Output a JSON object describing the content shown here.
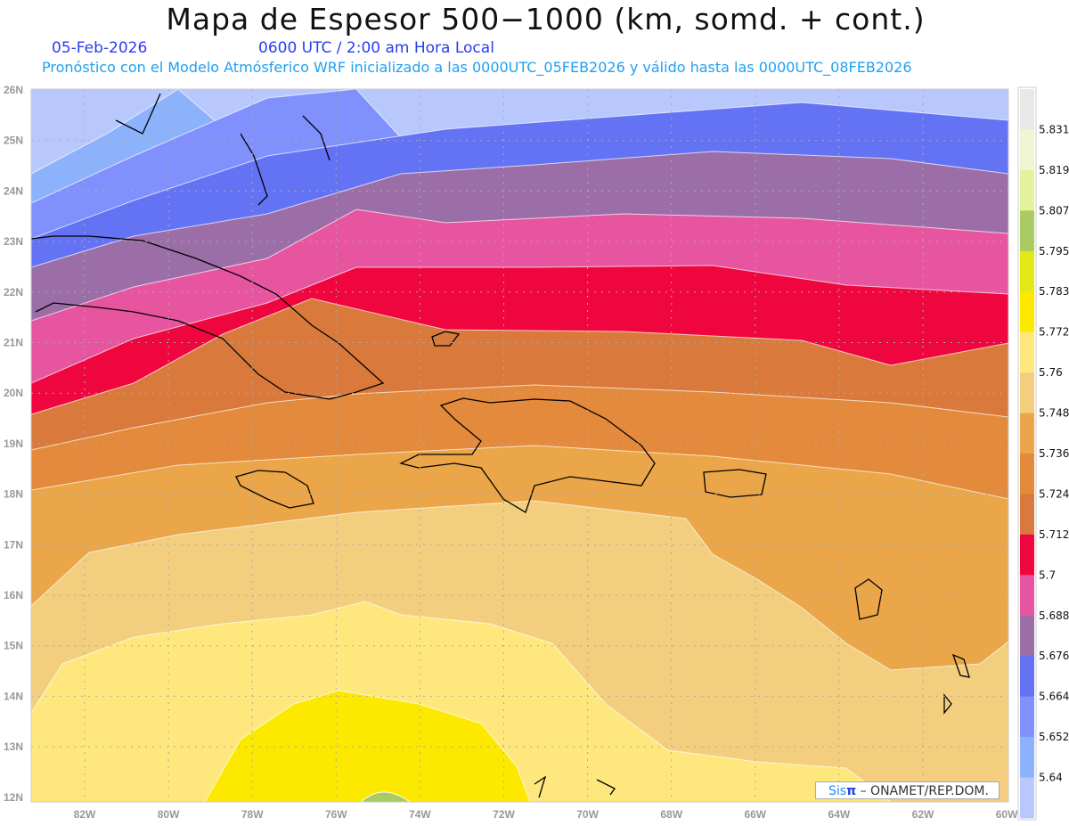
{
  "header": {
    "title": "Mapa de Espesor 500−1000 (km, somd. + cont.)",
    "date": "05-Feb-2026",
    "time": "0600 UTC / 2:00 am Hora Local",
    "forecast": "Pronóstico con el Modelo Atmósferico WRF inicializado a las 0000UTC_05FEB2026 y válido hasta las  0000UTC_08FEB2026"
  },
  "map": {
    "lat_labels": [
      "26N",
      "25N",
      "24N",
      "23N",
      "22N",
      "21N",
      "20N",
      "19N",
      "18N",
      "17N",
      "16N",
      "15N",
      "14N",
      "13N",
      "12N"
    ],
    "lon_labels": [
      "82W",
      "80W",
      "78W",
      "76W",
      "74W",
      "72W",
      "70W",
      "68W",
      "66W",
      "64W",
      "62W",
      "60W"
    ]
  },
  "colorbar": {
    "colors": [
      "#e8e8e8",
      "#eff5d2",
      "#e3f39c",
      "#a9cb62",
      "#e1e816",
      "#fde800",
      "#fee87e",
      "#f2ce7e",
      "#eaa648",
      "#e48a3c",
      "#d97a3c",
      "#f0063f",
      "#e755a0",
      "#9b6ea8",
      "#6473f4",
      "#8090fc",
      "#8cb2fc",
      "#b8c8fc"
    ],
    "labels": [
      "5.831",
      "5.819",
      "5.807",
      "5.795",
      "5.783",
      "5.772",
      "5.76",
      "5.748",
      "5.736",
      "5.724",
      "5.712",
      "5.7",
      "5.688",
      "5.676",
      "5.664",
      "5.652",
      "5.64"
    ]
  },
  "credit": {
    "brand_a": "Sis",
    "brand_b": "π",
    "text": " –  ONAMET/REP.DOM."
  }
}
